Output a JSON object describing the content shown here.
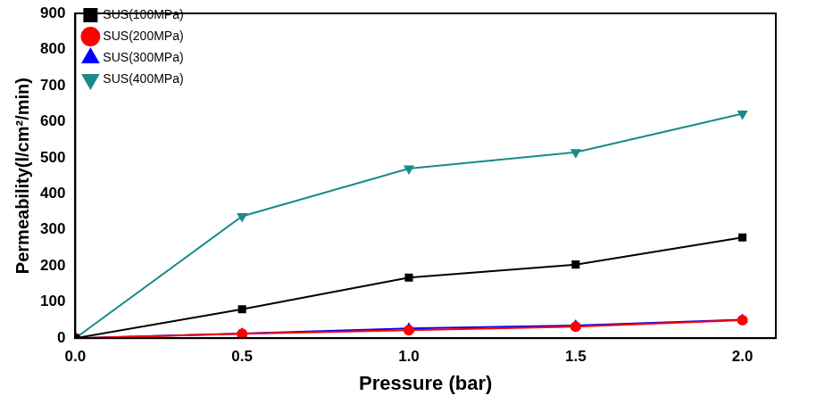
{
  "chart_data": {
    "type": "line",
    "x_label": "Pressure (bar)",
    "y_label": "Permeability(l/cm²/min)",
    "x": [
      0,
      0.5,
      1,
      1.5,
      2
    ],
    "series": [
      {
        "name": "SUS(100MPa)",
        "color": "#000000",
        "marker": "square",
        "values": [
          0,
          80,
          168,
          204,
          279
        ]
      },
      {
        "name": "SUS(200MPa)",
        "color": "#ff0000",
        "marker": "circle",
        "values": [
          0,
          12,
          22,
          32,
          50
        ]
      },
      {
        "name": "SUS(300MPa)",
        "color": "#0000ff",
        "marker": "triangle-up",
        "values": [
          0,
          13,
          27,
          35,
          51
        ]
      },
      {
        "name": "SUS(400MPa)",
        "color": "#1a8a8a",
        "marker": "triangle-down",
        "values": [
          0,
          338,
          470,
          515,
          622
        ]
      }
    ],
    "xlim": [
      0,
      2.1
    ],
    "xticks": [
      {
        "value": 0,
        "label": "0.0"
      },
      0.5,
      {
        "value": 1,
        "label": "1.0"
      },
      1.5,
      {
        "value": 2,
        "label": "2.0"
      }
    ],
    "ylim": [
      0,
      900
    ],
    "yticks": [
      0,
      100,
      200,
      300,
      400,
      500,
      600,
      700,
      800,
      900
    ],
    "grid": false,
    "legend": "upper left"
  }
}
